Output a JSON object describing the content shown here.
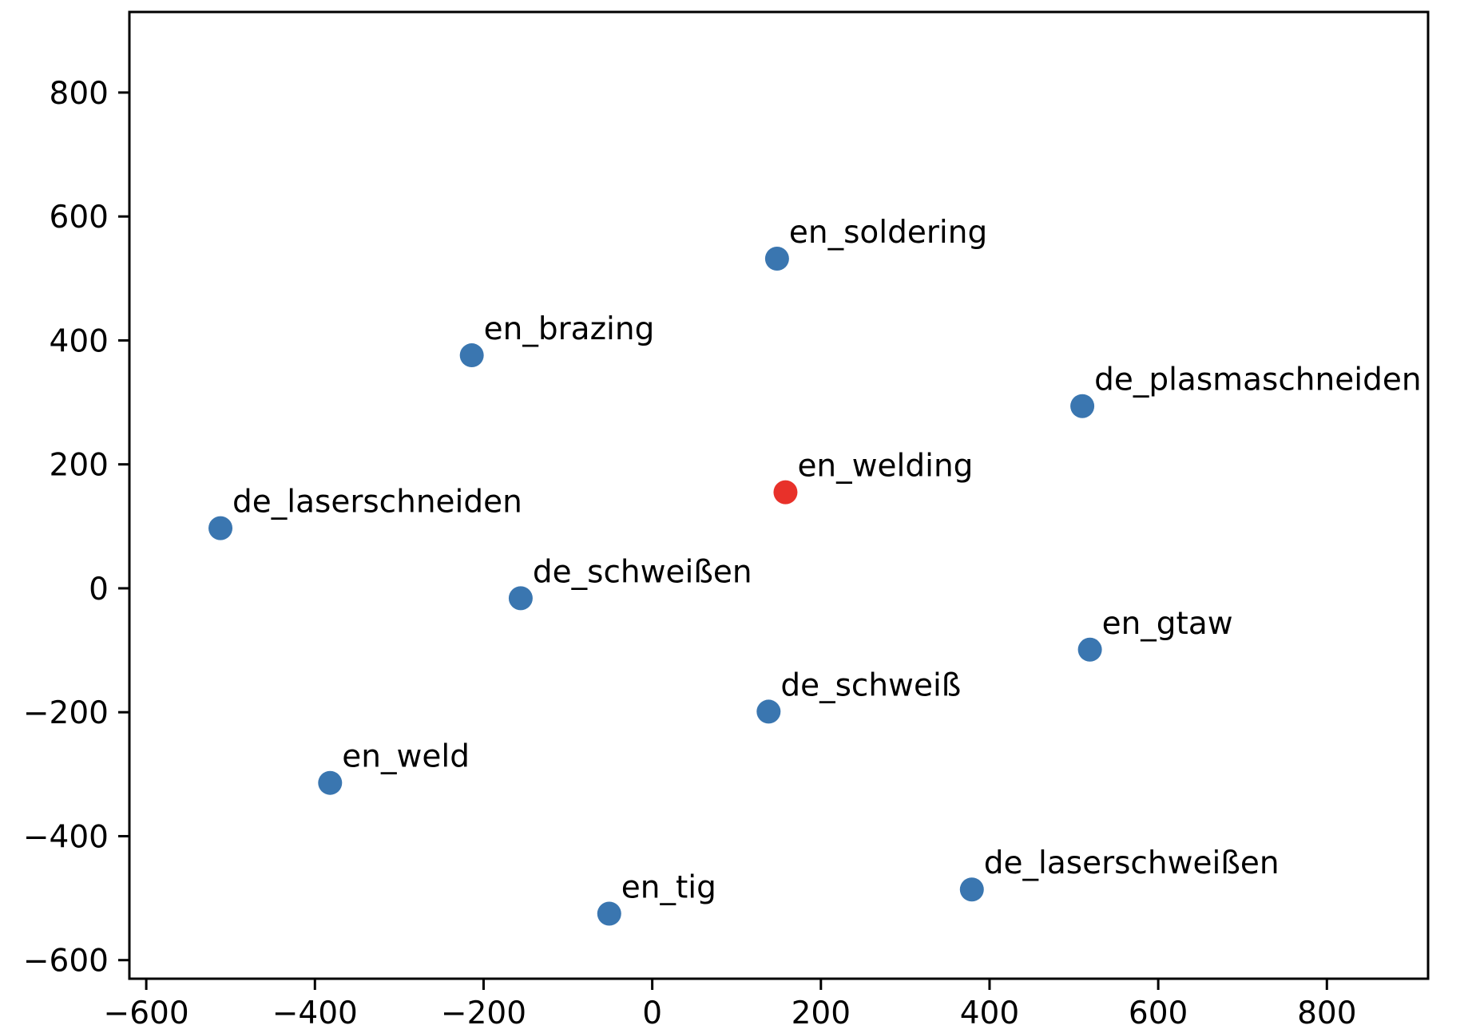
{
  "chart_data": {
    "type": "scatter",
    "title": "",
    "xlabel": "",
    "ylabel": "",
    "xlim": [
      -620,
      920
    ],
    "ylim": [
      -630,
      930
    ],
    "xticks": [
      -600,
      -400,
      -200,
      0,
      200,
      400,
      600,
      800
    ],
    "yticks": [
      -600,
      -400,
      -200,
      0,
      200,
      400,
      600,
      800
    ],
    "xtick_labels": [
      "−600",
      "−400",
      "−200",
      "0",
      "200",
      "400",
      "600",
      "800"
    ],
    "ytick_labels": [
      "−600",
      "−400",
      "−200",
      "0",
      "200",
      "400",
      "600",
      "800"
    ],
    "grid": false,
    "colors": {
      "default": "#3a76b0",
      "highlight": "#e8312a"
    },
    "points": [
      {
        "label": "en_soldering",
        "x": 148,
        "y": 532,
        "highlight": false
      },
      {
        "label": "en_brazing",
        "x": -214,
        "y": 376,
        "highlight": false
      },
      {
        "label": "de_plasmaschneiden",
        "x": 510,
        "y": 294,
        "highlight": false
      },
      {
        "label": "en_welding",
        "x": 158,
        "y": 155,
        "highlight": true
      },
      {
        "label": "de_laserschneiden",
        "x": -512,
        "y": 97,
        "highlight": false
      },
      {
        "label": "de_schweißen",
        "x": -156,
        "y": -16,
        "highlight": false
      },
      {
        "label": "en_gtaw",
        "x": 519,
        "y": -99,
        "highlight": false
      },
      {
        "label": "de_schweiß",
        "x": 138,
        "y": -199,
        "highlight": false
      },
      {
        "label": "en_weld",
        "x": -382,
        "y": -314,
        "highlight": false
      },
      {
        "label": "de_laserschweißen",
        "x": 379,
        "y": -486,
        "highlight": false
      },
      {
        "label": "en_tig",
        "x": -51,
        "y": -525,
        "highlight": false
      }
    ]
  }
}
